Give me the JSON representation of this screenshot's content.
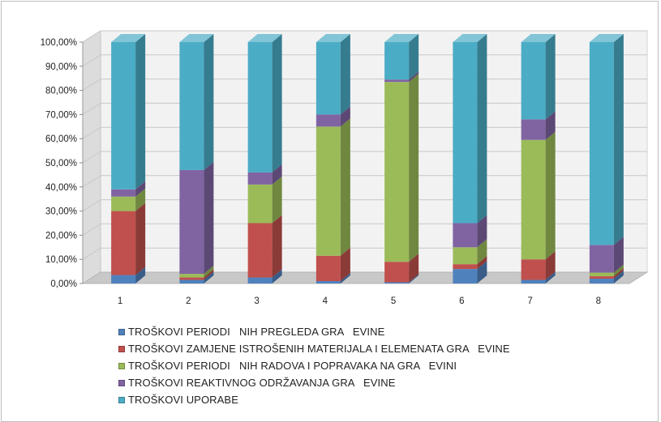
{
  "chart_data": {
    "type": "bar",
    "stacked": true,
    "three_d": true,
    "categories": [
      "1",
      "2",
      "3",
      "4",
      "5",
      "6",
      "7",
      "8"
    ],
    "ylim": [
      0,
      100
    ],
    "yticks": [
      "0,00%",
      "10,00%",
      "20,00%",
      "30,00%",
      "40,00%",
      "50,00%",
      "60,00%",
      "70,00%",
      "80,00%",
      "90,00%",
      "100,00%"
    ],
    "grid": true,
    "legend_position": "bottom",
    "series": [
      {
        "name": "TROŠKOVI PERIODI   NIH PREGLEDA GRA   EVINE",
        "color": "#4f81bd",
        "values": [
          3.5,
          1.5,
          2.5,
          1.0,
          0.5,
          6.0,
          1.5,
          2.0
        ]
      },
      {
        "name": "TROŠKOVI ZAMJENE ISTROŠENIH MATERIJALA I ELEMENATA GRA   EVINE",
        "color": "#c0504d",
        "values": [
          26.5,
          1.0,
          22.5,
          10.5,
          8.5,
          2.0,
          8.5,
          1.0
        ]
      },
      {
        "name": "TROŠKOVI PERIODI   NIH RADOVA I POPRAVAKA NA GRA   EVINI",
        "color": "#9bbb59",
        "values": [
          6.0,
          1.5,
          16.0,
          53.5,
          74.5,
          7.0,
          49.5,
          1.5
        ]
      },
      {
        "name": "TROŠKOVI REAKTIVNOG ODRŽAVANJA GRA   EVINE",
        "color": "#8064a2",
        "values": [
          3.0,
          43.0,
          5.0,
          5.0,
          1.0,
          10.0,
          8.5,
          11.5
        ]
      },
      {
        "name": "TROŠKOVI UPORABE",
        "color": "#4bacc6",
        "values": [
          61.0,
          53.0,
          54.0,
          30.0,
          15.5,
          75.0,
          32.0,
          84.0
        ]
      }
    ]
  }
}
